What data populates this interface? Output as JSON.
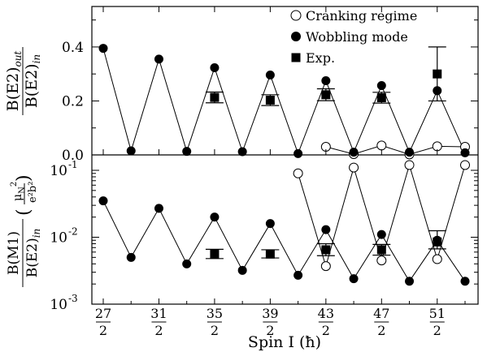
{
  "chart_data": [
    {
      "type": "line",
      "panel": "top",
      "ylabel": "B(E2)out / B(E2)in",
      "ylabel_parts": {
        "num_main": "B(E2)",
        "num_sub": "out",
        "den_main": "B(E2)",
        "den_sub": "in"
      },
      "ylim": [
        0.0,
        0.55
      ],
      "yticks": [
        0.0,
        0.2,
        0.4
      ],
      "ytick_labels": [
        "0.0",
        "0.2",
        "0.4"
      ],
      "yscale": "linear",
      "grid": false,
      "legend_position": "top-right",
      "series": [
        {
          "name": "Cranking regime",
          "marker": "open-circle",
          "x": [
            21.5,
            22.5,
            23.5,
            24.5,
            25.5,
            26.5
          ],
          "y": [
            0.03,
            0.003,
            0.035,
            0.002,
            0.032,
            0.03
          ]
        },
        {
          "name": "Wobbling mode",
          "marker": "filled-circle",
          "x": [
            13.5,
            14.5,
            15.5,
            16.5,
            17.5,
            18.5,
            19.5,
            20.5,
            21.5,
            22.5,
            23.5,
            24.5,
            25.5,
            26.5
          ],
          "y": [
            0.395,
            0.015,
            0.355,
            0.013,
            0.323,
            0.012,
            0.296,
            0.005,
            0.275,
            0.01,
            0.257,
            0.01,
            0.238,
            0.008
          ]
        },
        {
          "name": "Exp.",
          "marker": "filled-square",
          "x": [
            17.5,
            19.5,
            21.5,
            23.5,
            25.5
          ],
          "y": [
            0.213,
            0.203,
            0.223,
            0.212,
            0.3
          ],
          "err": [
            0.02,
            0.02,
            0.022,
            0.02,
            0.1
          ]
        }
      ]
    },
    {
      "type": "line",
      "panel": "bottom",
      "xlabel": "Spin I (ħ)",
      "ylabel": "B(M1)/B(E2)in (μN²/e²b²)",
      "ylabel_parts": {
        "num_main": "B(M1)",
        "den_main": "B(E2)",
        "den_sub": "in",
        "unit_num": "μ",
        "unit_num_sub": "N",
        "unit_sup": "2",
        "unit_den": "e²b²"
      },
      "yscale": "log",
      "ylim": [
        0.001,
        0.1
      ],
      "yticks": [
        0.001,
        0.01,
        0.1
      ],
      "ytick_labels": [
        {
          "base": "10",
          "exp": "-3"
        },
        {
          "base": "10",
          "exp": "-2"
        },
        {
          "base": "10",
          "exp": "-1"
        }
      ],
      "xticks": [
        13.5,
        15.5,
        17.5,
        19.5,
        21.5,
        23.5,
        25.5
      ],
      "xtick_labels": [
        {
          "num": "27",
          "den": "2"
        },
        {
          "num": "31",
          "den": "2"
        },
        {
          "num": "35",
          "den": "2"
        },
        {
          "num": "39",
          "den": "2"
        },
        {
          "num": "43",
          "den": "2"
        },
        {
          "num": "47",
          "den": "2"
        },
        {
          "num": "51",
          "den": "2"
        }
      ],
      "grid": false,
      "series": [
        {
          "name": "Cranking regime",
          "marker": "open-circle",
          "x": [
            20.5,
            21.5,
            22.5,
            23.5,
            24.5,
            25.5,
            26.5
          ],
          "y": [
            0.09,
            0.0037,
            0.11,
            0.0045,
            0.12,
            0.0047,
            0.12
          ]
        },
        {
          "name": "Wobbling mode",
          "marker": "filled-circle",
          "x": [
            13.5,
            14.5,
            15.5,
            16.5,
            17.5,
            18.5,
            19.5,
            20.5,
            21.5,
            22.5,
            23.5,
            24.5,
            25.5,
            26.5
          ],
          "y": [
            0.035,
            0.005,
            0.027,
            0.004,
            0.02,
            0.0032,
            0.016,
            0.0027,
            0.013,
            0.0024,
            0.011,
            0.0022,
            0.009,
            0.0022
          ]
        },
        {
          "name": "Exp.",
          "marker": "filled-square",
          "x": [
            17.5,
            19.5,
            21.5,
            23.5,
            25.5
          ],
          "y": [
            0.0056,
            0.0056,
            0.0065,
            0.0065,
            0.0085
          ],
          "err_low": [
            0.0048,
            0.0049,
            0.0053,
            0.0054,
            0.0067
          ],
          "err_high": [
            0.0066,
            0.0065,
            0.008,
            0.0078,
            0.0125
          ]
        }
      ]
    }
  ]
}
